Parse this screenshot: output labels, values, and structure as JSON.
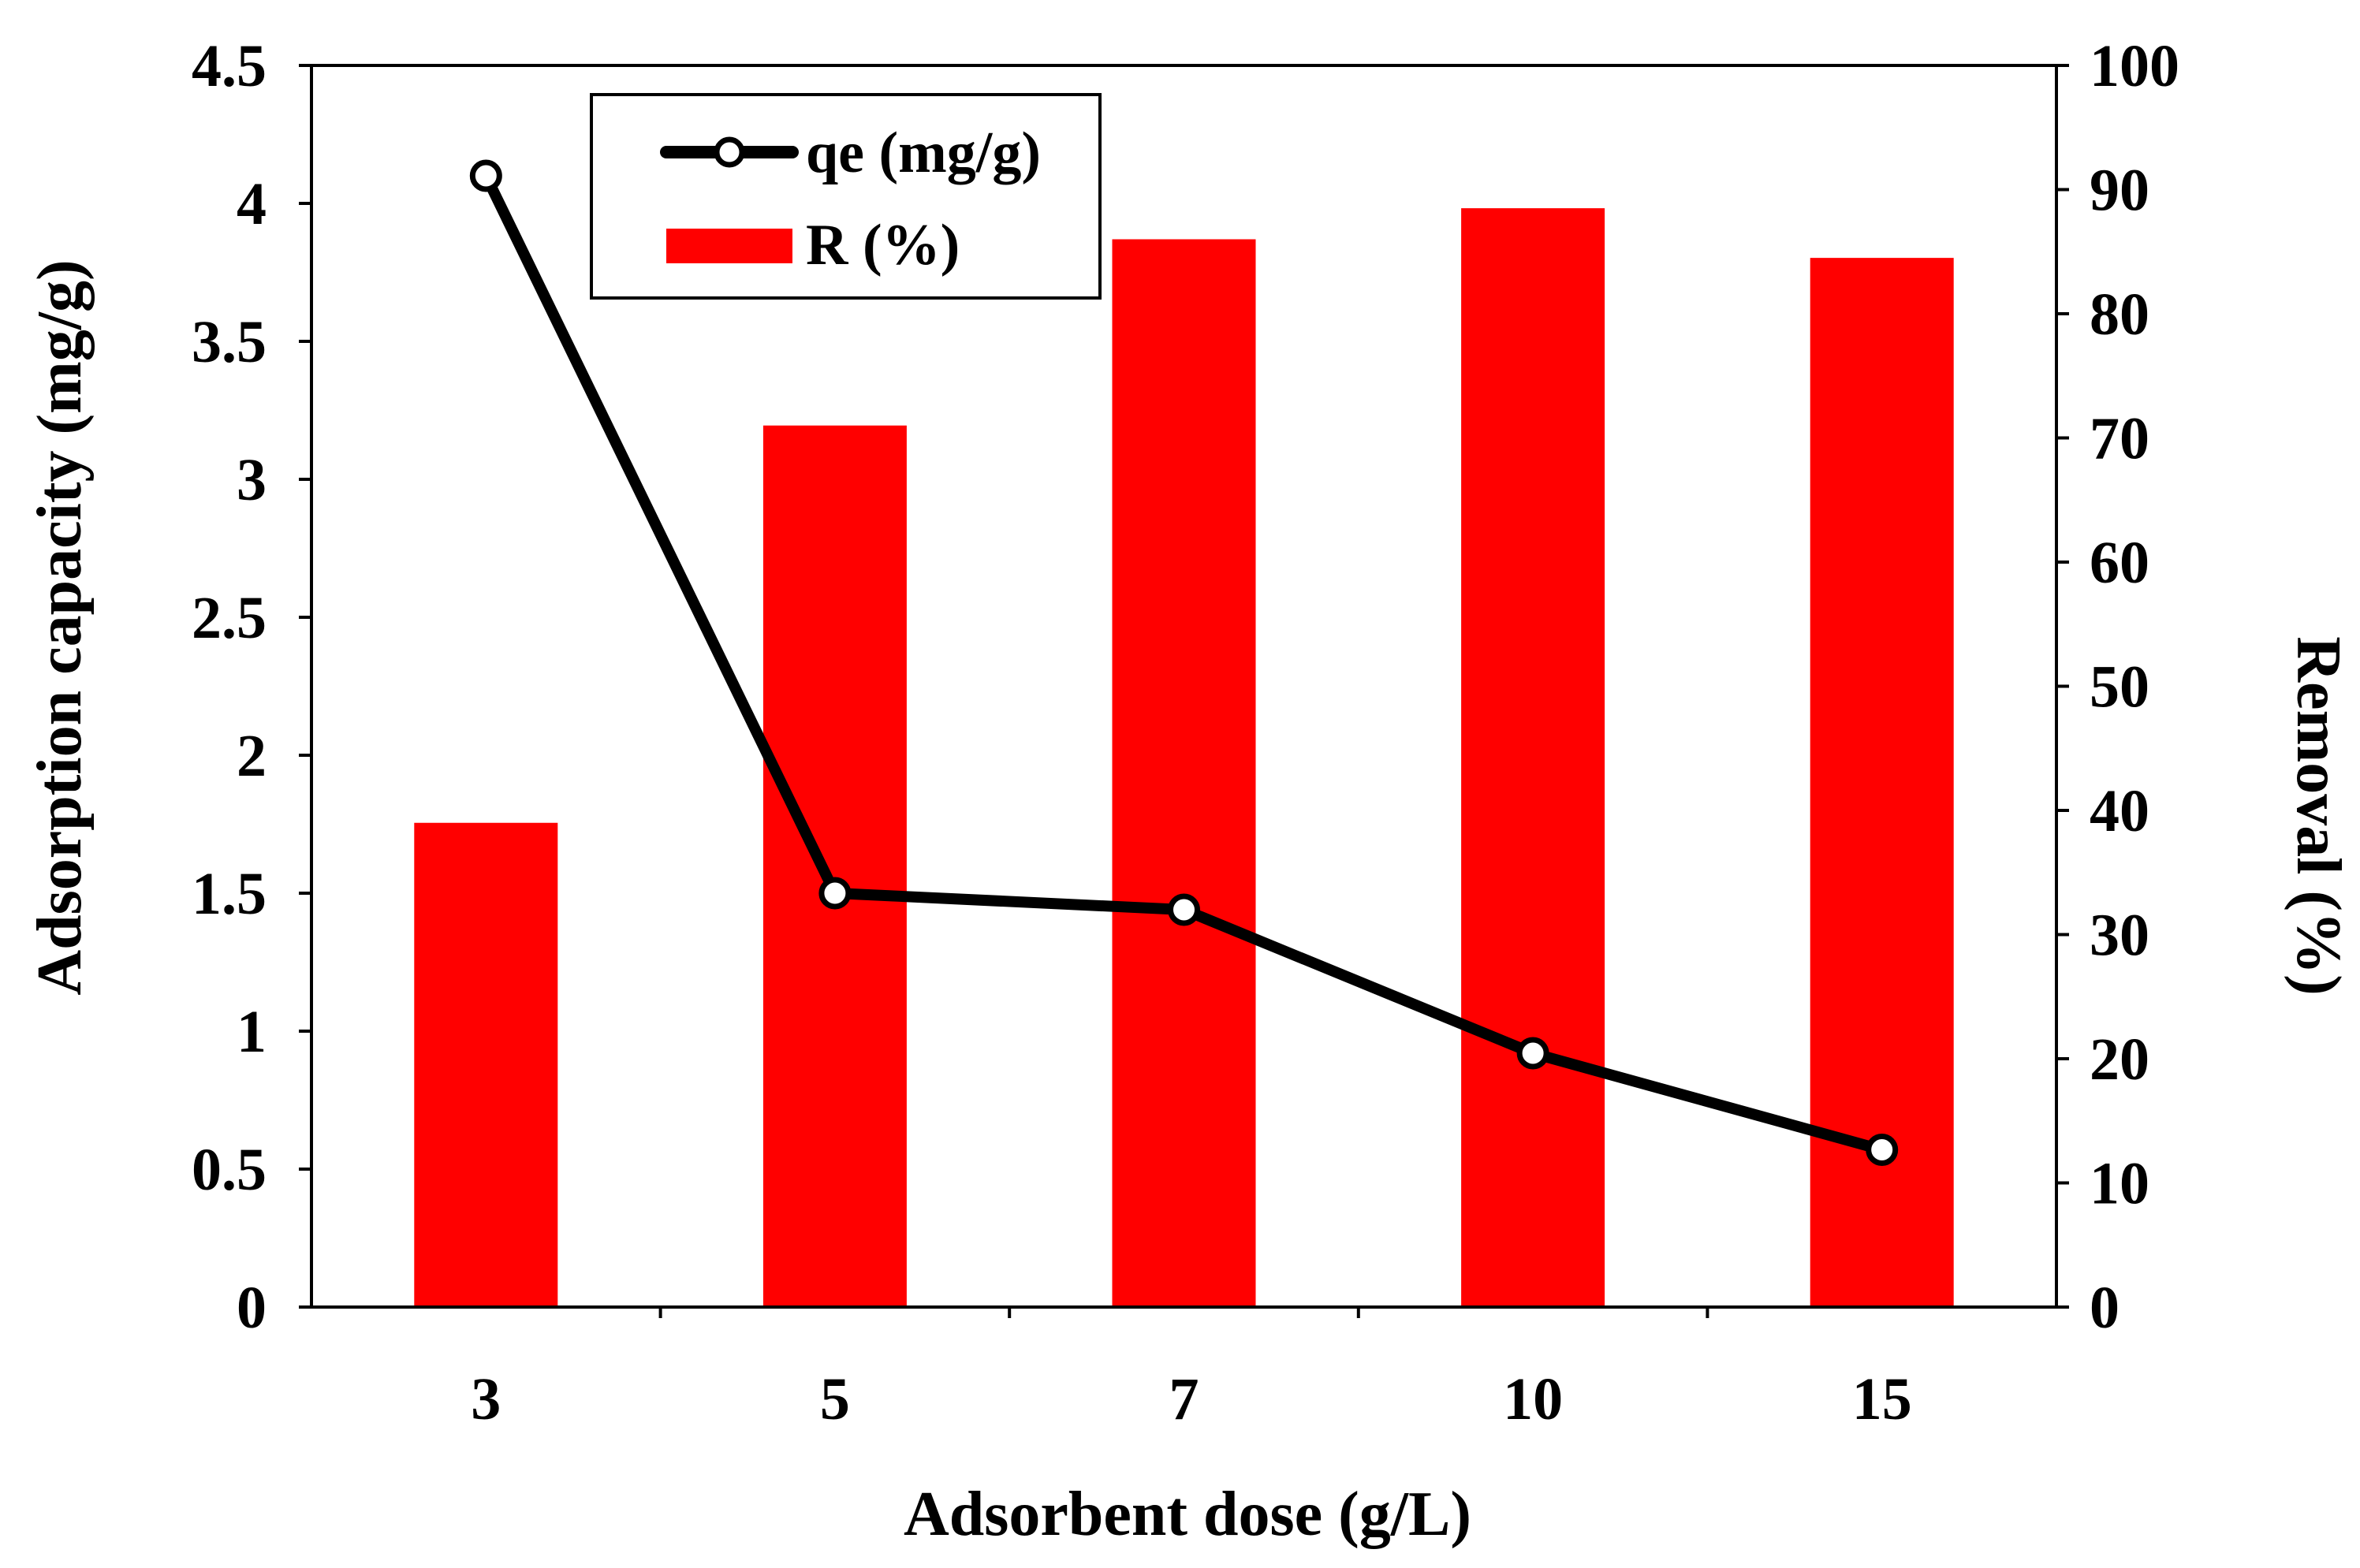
{
  "chart_data": {
    "type": "bar+line",
    "categories": [
      "3",
      "5",
      "7",
      "10",
      "15"
    ],
    "series": [
      {
        "name": "R (%)",
        "kind": "bar",
        "axis": "right",
        "color": "#ff0000",
        "values": [
          39,
          71,
          86,
          88.5,
          84.5
        ]
      },
      {
        "name": "qe (mg/g)",
        "kind": "line",
        "axis": "left",
        "color": "#000000",
        "marker_fill": "#ffffff",
        "values": [
          4.1,
          1.5,
          1.44,
          0.92,
          0.57
        ]
      }
    ],
    "xlabel": "Adsorbent dose (g/L)",
    "ylabel_left": "Adsorption capacity (mg/g)",
    "ylabel_right": "Removal (%)",
    "ylim_left": [
      0,
      4.5
    ],
    "ylim_right": [
      0,
      100
    ],
    "yticks_left": [
      "0",
      "0.5",
      "1",
      "1.5",
      "2",
      "2.5",
      "3",
      "3.5",
      "4",
      "4.5"
    ],
    "yticks_right": [
      "0",
      "10",
      "20",
      "30",
      "40",
      "50",
      "60",
      "70",
      "80",
      "90",
      "100"
    ],
    "legend": {
      "position": "top-left",
      "entries": [
        "qe (mg/g)",
        "R (%)"
      ]
    },
    "grid": false
  }
}
